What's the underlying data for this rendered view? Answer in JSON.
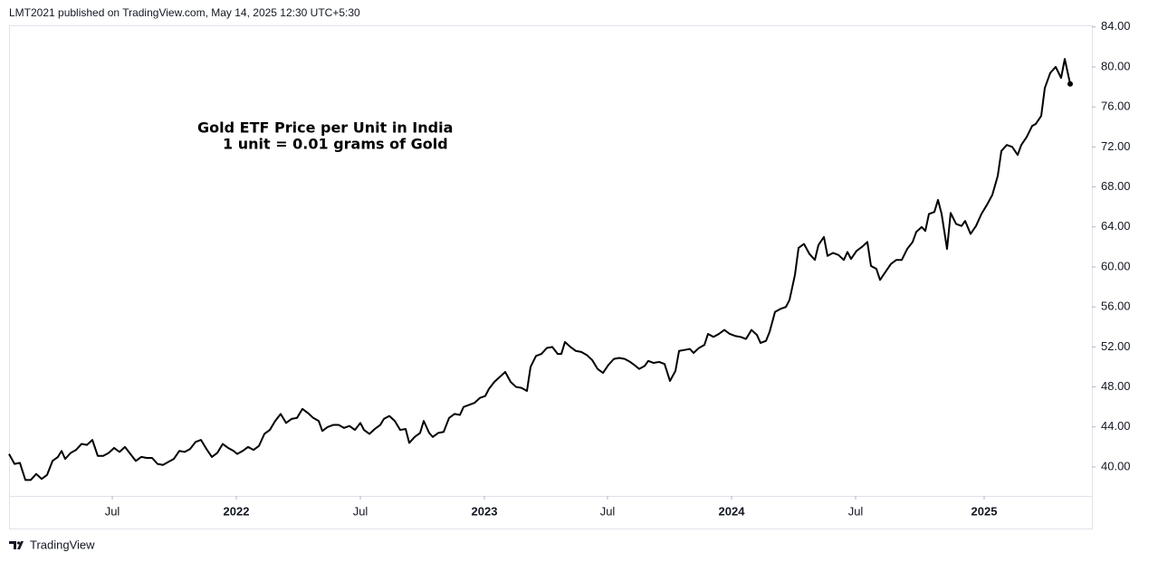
{
  "header": "LMT2021 published on TradingView.com, May 14, 2025 12:30 UTC+5:30",
  "brand": "TradingView",
  "chart_data": {
    "type": "line",
    "annotations": [
      "Gold ETF Price per Unit  in India",
      "1 unit = 0.01 grams of Gold"
    ],
    "xlim": [
      0,
      1196
    ],
    "xticks": [
      {
        "value": 114,
        "label": "Jul"
      },
      {
        "value": 251,
        "label": "2022"
      },
      {
        "value": 388,
        "label": "Jul"
      },
      {
        "value": 525,
        "label": "2023"
      },
      {
        "value": 661,
        "label": "Jul"
      },
      {
        "value": 798,
        "label": "2024"
      },
      {
        "value": 935,
        "label": "Jul"
      },
      {
        "value": 1077,
        "label": "2025"
      }
    ],
    "ylim": [
      37.1,
      84.16
    ],
    "yticks": [
      {
        "value": 40,
        "label": "40.00"
      },
      {
        "value": 44,
        "label": "44.00"
      },
      {
        "value": 48,
        "label": "48.00"
      },
      {
        "value": 52,
        "label": "52.00"
      },
      {
        "value": 56,
        "label": "56.00"
      },
      {
        "value": 60,
        "label": "60.00"
      },
      {
        "value": 64,
        "label": "64.00"
      },
      {
        "value": 68,
        "label": "68.00"
      },
      {
        "value": 72,
        "label": "72.00"
      },
      {
        "value": 76,
        "label": "76.00"
      },
      {
        "value": 80,
        "label": "80.00"
      },
      {
        "value": 84,
        "label": "84.00"
      }
    ],
    "x": [
      0,
      6,
      12,
      18,
      24,
      30,
      36,
      42,
      48,
      54,
      58,
      62,
      68,
      74,
      80,
      86,
      92,
      98,
      104,
      110,
      116,
      122,
      128,
      134,
      140,
      146,
      152,
      158,
      164,
      170,
      176,
      182,
      188,
      194,
      200,
      206,
      212,
      218,
      224,
      230,
      236,
      242,
      248,
      252,
      258,
      264,
      270,
      276,
      282,
      288,
      294,
      300,
      306,
      312,
      318,
      324,
      330,
      336,
      342,
      346,
      352,
      358,
      364,
      370,
      376,
      382,
      388,
      392,
      398,
      404,
      410,
      414,
      420,
      426,
      432,
      438,
      442,
      448,
      454,
      458,
      464,
      468,
      474,
      480,
      486,
      492,
      498,
      502,
      508,
      514,
      520,
      526,
      530,
      536,
      542,
      548,
      554,
      560,
      566,
      572,
      576,
      582,
      588,
      594,
      600,
      606,
      610,
      614,
      620,
      626,
      632,
      638,
      644,
      650,
      656,
      662,
      668,
      674,
      680,
      686,
      692,
      696,
      702,
      706,
      712,
      718,
      724,
      730,
      736,
      740,
      746,
      752,
      756,
      762,
      768,
      772,
      778,
      784,
      790,
      796,
      802,
      808,
      814,
      820,
      826,
      830,
      836,
      840,
      846,
      852,
      858,
      862,
      868,
      872,
      878,
      884,
      890,
      894,
      900,
      904,
      910,
      916,
      922,
      926,
      930,
      936,
      942,
      948,
      952,
      958,
      962,
      968,
      974,
      980,
      986,
      992,
      998,
      1002,
      1008,
      1012,
      1016,
      1022,
      1026,
      1030,
      1036,
      1040,
      1046,
      1052,
      1056,
      1062,
      1068,
      1074,
      1080,
      1086,
      1092,
      1096,
      1102,
      1108,
      1114,
      1118,
      1124,
      1130,
      1134,
      1140,
      1144,
      1150,
      1156,
      1162,
      1166,
      1172
    ],
    "series": [
      {
        "color": "#000000",
        "values": [
          41.3,
          40.3,
          40.4,
          38.7,
          38.7,
          39.3,
          38.8,
          39.2,
          40.6,
          41.0,
          41.6,
          40.8,
          41.4,
          41.7,
          42.3,
          42.2,
          42.7,
          41.1,
          41.1,
          41.4,
          41.9,
          41.5,
          42.0,
          41.3,
          40.6,
          41.0,
          40.9,
          40.9,
          40.3,
          40.2,
          40.5,
          40.8,
          41.6,
          41.5,
          41.8,
          42.5,
          42.7,
          41.8,
          41.0,
          41.4,
          42.3,
          41.9,
          41.6,
          41.3,
          41.6,
          42.0,
          41.7,
          42.1,
          43.3,
          43.7,
          44.6,
          45.3,
          44.4,
          44.8,
          44.9,
          45.8,
          45.4,
          44.9,
          44.6,
          43.6,
          44.0,
          44.2,
          44.2,
          43.9,
          44.1,
          43.7,
          44.4,
          43.7,
          43.3,
          43.8,
          44.2,
          44.8,
          45.1,
          44.6,
          43.7,
          43.8,
          42.4,
          43.0,
          43.4,
          44.6,
          43.4,
          43.0,
          43.4,
          43.5,
          44.9,
          45.3,
          45.2,
          46.0,
          46.2,
          46.4,
          46.9,
          47.1,
          47.8,
          48.5,
          49.0,
          49.5,
          48.5,
          48.0,
          47.9,
          47.6,
          50.0,
          51.1,
          51.3,
          51.9,
          52.0,
          51.3,
          51.3,
          52.5,
          52.0,
          51.6,
          51.5,
          51.2,
          50.7,
          49.8,
          49.4,
          50.2,
          50.8,
          50.9,
          50.8,
          50.5,
          50.1,
          49.8,
          50.1,
          50.6,
          50.4,
          50.5,
          50.3,
          48.6,
          49.6,
          51.6,
          51.7,
          51.8,
          51.4,
          51.9,
          52.2,
          53.3,
          53.0,
          53.3,
          53.7,
          53.3,
          53.1,
          53.0,
          52.8,
          53.7,
          53.2,
          52.4,
          52.6,
          53.5,
          55.5,
          55.8,
          56.0,
          56.7,
          59.2,
          61.9,
          62.3,
          61.3,
          60.7,
          62.2,
          63.0,
          61.1,
          61.4,
          61.2,
          60.7,
          61.5,
          60.8,
          61.6,
          62.0,
          62.5,
          60.1,
          59.8,
          58.7,
          59.5,
          60.3,
          60.7,
          60.7,
          61.8,
          62.5,
          63.5,
          64.0,
          63.6,
          65.3,
          65.5,
          66.7,
          65.3,
          61.8,
          65.4,
          64.3,
          64.1,
          64.6,
          63.3,
          64.1,
          65.3,
          66.2,
          67.2,
          69.1,
          71.6,
          72.2,
          72.0,
          71.2,
          72.2,
          73.0,
          74.1,
          74.3,
          75.1,
          77.9,
          79.4,
          80.0,
          78.9,
          80.8,
          78.3
        ]
      }
    ]
  }
}
